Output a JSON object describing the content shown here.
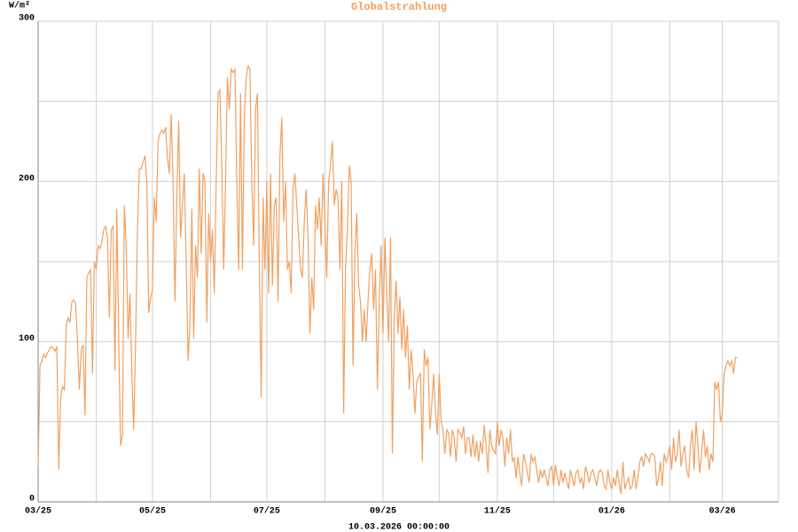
{
  "chart_data": {
    "type": "line",
    "title": "Globalstrahlung",
    "y_label": "W/m²",
    "timestamp": "10.03.2026 00:00:00",
    "color": "#f0a060",
    "values": [
      22,
      85,
      88,
      92,
      90,
      93,
      95,
      97,
      96,
      94,
      97,
      20,
      65,
      72,
      70,
      110,
      115,
      112,
      125,
      126,
      124,
      100,
      70,
      95,
      98,
      54,
      140,
      143,
      145,
      80,
      150,
      145,
      160,
      158,
      162,
      170,
      172,
      165,
      115,
      170,
      172,
      82,
      183,
      100,
      35,
      42,
      185,
      160,
      102,
      130,
      80,
      45,
      100,
      170,
      208,
      208,
      212,
      216,
      200,
      118,
      128,
      132,
      190,
      175,
      225,
      230,
      232,
      230,
      234,
      215,
      205,
      242,
      200,
      125,
      190,
      238,
      165,
      185,
      205,
      150,
      88,
      110,
      183,
      102,
      160,
      140,
      208,
      155,
      205,
      200,
      112,
      180,
      150,
      170,
      130,
      200,
      255,
      257,
      210,
      145,
      200,
      265,
      245,
      270,
      268,
      270,
      200,
      145,
      255,
      145,
      240,
      265,
      272,
      270,
      200,
      160,
      245,
      255,
      150,
      65,
      190,
      145,
      200,
      130,
      205,
      135,
      185,
      190,
      125,
      215,
      240,
      175,
      200,
      145,
      150,
      130,
      195,
      205,
      185,
      165,
      145,
      140,
      175,
      195,
      165,
      105,
      140,
      120,
      185,
      170,
      190,
      160,
      205,
      175,
      140,
      200,
      210,
      225,
      185,
      195,
      190,
      145,
      200,
      55,
      145,
      170,
      210,
      200,
      85,
      155,
      180,
      135,
      125,
      100,
      120,
      100,
      125,
      145,
      155,
      120,
      145,
      70,
      125,
      160,
      105,
      165,
      130,
      100,
      165,
      30,
      115,
      138,
      105,
      128,
      95,
      120,
      90,
      110,
      70,
      95,
      80,
      55,
      75,
      78,
      80,
      25,
      95,
      85,
      90,
      45,
      60,
      80,
      55,
      42,
      80,
      50,
      45,
      30,
      45,
      43,
      28,
      45,
      40,
      25,
      45,
      43,
      40,
      47,
      30,
      40,
      40,
      28,
      42,
      28,
      38,
      25,
      38,
      30,
      48,
      35,
      18,
      45,
      35,
      32,
      30,
      50,
      35,
      45,
      40,
      22,
      40,
      30,
      45,
      25,
      28,
      15,
      28,
      18,
      10,
      30,
      25,
      18,
      12,
      30,
      25,
      28,
      20,
      12,
      20,
      15,
      20,
      15,
      10,
      20,
      22,
      10,
      23,
      15,
      10,
      20,
      12,
      18,
      13,
      8,
      20,
      15,
      10,
      18,
      20,
      12,
      15,
      8,
      22,
      18,
      12,
      18,
      20,
      15,
      10,
      18,
      20,
      18,
      10,
      8,
      20,
      12,
      8,
      15,
      10,
      20,
      12,
      5,
      25,
      8,
      12,
      15,
      8,
      10,
      20,
      8,
      15,
      25,
      28,
      22,
      30,
      28,
      25,
      30,
      30,
      28,
      10,
      15,
      25,
      10,
      30,
      25,
      28,
      35,
      20,
      40,
      25,
      30,
      45,
      22,
      30,
      35,
      20,
      15,
      35,
      45,
      20,
      50,
      35,
      18,
      30,
      45,
      28,
      35,
      20,
      30,
      25,
      75,
      70,
      75,
      50,
      55,
      80,
      85,
      88,
      85,
      88,
      80,
      90,
      90
    ],
    "xlim": [
      0,
      395
    ],
    "xticks": [
      {
        "value": 0,
        "label": "03/25"
      },
      {
        "value": 61,
        "label": "05/25"
      },
      {
        "value": 122,
        "label": "07/25"
      },
      {
        "value": 184,
        "label": "09/25"
      },
      {
        "value": 245,
        "label": "11/25"
      },
      {
        "value": 306,
        "label": "01/26"
      },
      {
        "value": 365,
        "label": "03/26"
      }
    ],
    "xminor": [
      31,
      92,
      153,
      214,
      275,
      337
    ],
    "ylim": [
      0,
      300
    ],
    "yticks": [
      0,
      100,
      200,
      300
    ],
    "yminor": [
      50,
      150,
      250
    ],
    "grid": true
  }
}
